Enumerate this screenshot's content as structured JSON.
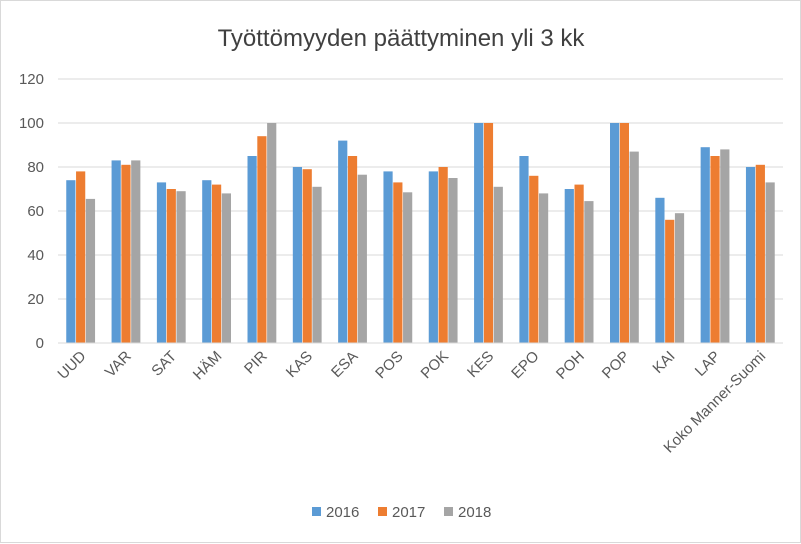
{
  "chart_data": {
    "type": "bar",
    "title": "Työttömyyden päättyminen yli 3 kk",
    "xlabel": "",
    "ylabel": "",
    "ylim": [
      0,
      120
    ],
    "yticks": [
      0,
      20,
      40,
      60,
      80,
      100,
      120
    ],
    "grid": true,
    "legend_position": "bottom",
    "categories": [
      "UUD",
      "VAR",
      "SAT",
      "HÄM",
      "PIR",
      "KAS",
      "ESA",
      "POS",
      "POK",
      "KES",
      "EPO",
      "POH",
      "POP",
      "KAI",
      "LAP",
      "Koko Manner-Suomi"
    ],
    "series": [
      {
        "name": "2016",
        "color": "#5b9bd5",
        "values": [
          74,
          83,
          73,
          74,
          85,
          80,
          92,
          78,
          78,
          100,
          85,
          70,
          100,
          66,
          89,
          80
        ]
      },
      {
        "name": "2017",
        "color": "#ed7d31",
        "values": [
          78,
          81,
          70,
          72,
          94,
          79,
          85,
          73,
          80,
          100,
          76,
          72,
          100,
          56,
          85,
          81
        ]
      },
      {
        "name": "2018",
        "color": "#a5a5a5",
        "values": [
          65.5,
          83,
          69,
          68,
          100,
          71,
          76.5,
          68.5,
          75,
          71,
          68,
          64.5,
          87,
          59,
          88,
          73
        ]
      }
    ]
  }
}
